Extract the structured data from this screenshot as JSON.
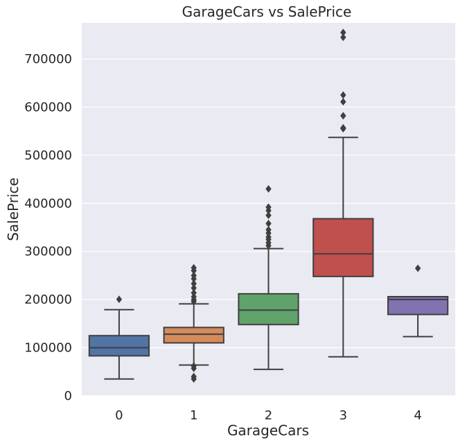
{
  "chart_data": {
    "type": "box",
    "title": "GarageCars vs SalePrice",
    "xlabel": "GarageCars",
    "ylabel": "SalePrice",
    "ylim": [
      0,
      775000
    ],
    "yticks": [
      0,
      100000,
      200000,
      300000,
      400000,
      500000,
      600000,
      700000
    ],
    "grid": true,
    "colors": {
      "background": "#eaeaf2",
      "grid": "#ffffff",
      "line": "#3f3f3f"
    },
    "categories": [
      "0",
      "1",
      "2",
      "3",
      "4"
    ],
    "boxes": [
      {
        "category": "0",
        "color": "#5274a5",
        "whisker_low": 35000,
        "q1": 83000,
        "median": 100000,
        "q3": 125000,
        "whisker_high": 179000,
        "outliers": [
          200500
        ]
      },
      {
        "category": "1",
        "color": "#d68b5c",
        "whisker_low": 64000,
        "q1": 110000,
        "median": 128000,
        "q3": 142000,
        "whisker_high": 191000,
        "outliers": [
          35000,
          40000,
          57000,
          62000,
          196000,
          200000,
          206000,
          214000,
          224000,
          233000,
          243000,
          250000,
          260000,
          266000
        ]
      },
      {
        "category": "2",
        "color": "#5fa36a",
        "whisker_low": 55000,
        "q1": 148000,
        "median": 178000,
        "q3": 212000,
        "whisker_high": 306000,
        "outliers": [
          312000,
          318000,
          325000,
          330000,
          338000,
          345000,
          358000,
          375000,
          385000,
          392000,
          430000
        ]
      },
      {
        "category": "3",
        "color": "#c0504e",
        "whisker_low": 81000,
        "q1": 248000,
        "median": 295000,
        "q3": 368000,
        "whisker_high": 537000,
        "outliers": [
          555000,
          557000,
          582000,
          611000,
          625000,
          745000,
          755000
        ]
      },
      {
        "category": "4",
        "color": "#8172b2",
        "whisker_low": 123000,
        "q1": 169000,
        "median": 200000,
        "q3": 206000,
        "whisker_high": 206000,
        "outliers": [
          265000
        ]
      }
    ]
  }
}
